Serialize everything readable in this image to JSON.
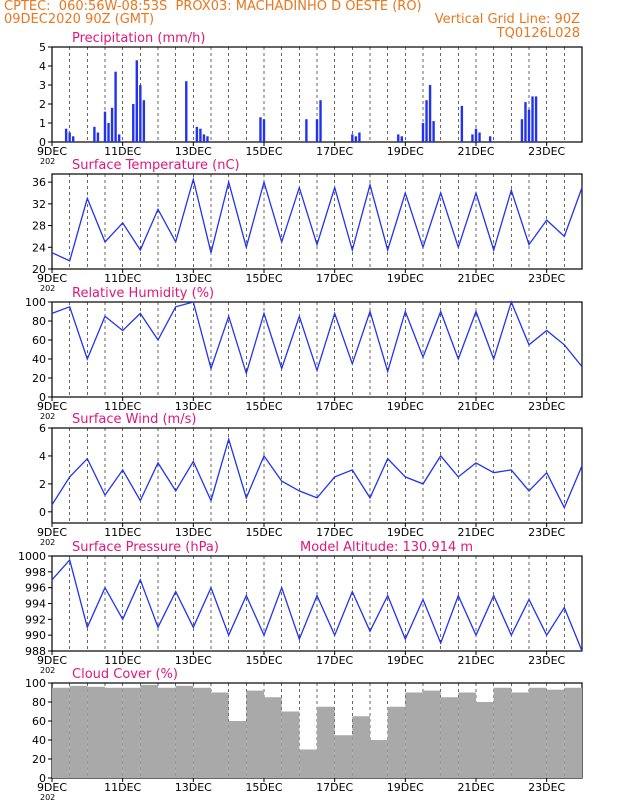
{
  "header": {
    "line1": "CPTEC:  060:56W-08:53S  PROX03: MACHADINHO D OESTE (RO)",
    "line2_left": "09DEC2020 90Z (GMT)",
    "line2_right": "Vertical Grid Line: 90Z",
    "line3_right": "TQ0126L028"
  },
  "colors": {
    "header": "#e8771e",
    "title": "#e0177a",
    "series": "#2233ee",
    "cloud": "#a9a9a9"
  },
  "x_ticks": [
    "9DEC",
    "11DEC",
    "13DEC",
    "15DEC",
    "17DEC",
    "19DEC",
    "21DEC",
    "23DEC"
  ],
  "x_tick_sub": "202",
  "chart_data": [
    {
      "id": "precip",
      "type": "bar",
      "title": "Precipitation (mm/h)",
      "xlim": [
        0,
        15
      ],
      "ylim": [
        0,
        5
      ],
      "yticks": [
        0,
        1,
        2,
        3,
        4,
        5
      ],
      "x": [
        0.4,
        0.5,
        0.6,
        1.2,
        1.3,
        1.5,
        1.6,
        1.7,
        1.8,
        1.9,
        2.3,
        2.4,
        2.5,
        2.6,
        3.8,
        4.1,
        4.2,
        4.3,
        4.4,
        5.9,
        6.0,
        7.2,
        7.5,
        7.6,
        8.5,
        8.6,
        8.7,
        9.8,
        9.9,
        10.5,
        10.6,
        10.7,
        10.8,
        11.6,
        11.9,
        12.0,
        12.1,
        12.4,
        13.3,
        13.4,
        13.5,
        13.6,
        13.7
      ],
      "values": [
        0.7,
        0.5,
        0.3,
        0.8,
        0.5,
        1.6,
        1.0,
        1.8,
        3.7,
        0.4,
        2.0,
        4.3,
        3.0,
        2.2,
        3.2,
        0.8,
        0.7,
        0.4,
        0.3,
        1.3,
        1.2,
        1.2,
        1.2,
        2.2,
        0.4,
        0.3,
        0.5,
        0.4,
        0.3,
        1.0,
        2.2,
        3.0,
        1.1,
        1.9,
        0.4,
        0.7,
        0.5,
        0.3,
        1.2,
        2.1,
        1.7,
        2.4,
        2.4
      ]
    },
    {
      "id": "temp",
      "type": "line",
      "title": "Surface Temperature (nC)",
      "xlim": [
        0,
        15
      ],
      "ylim": [
        20,
        37.5
      ],
      "yticks": [
        20,
        24,
        28,
        32,
        36
      ],
      "x": [
        0,
        0.5,
        1.0,
        1.5,
        2.0,
        2.5,
        3.0,
        3.5,
        4.0,
        4.5,
        5.0,
        5.5,
        6.0,
        6.5,
        7.0,
        7.5,
        8.0,
        8.5,
        9.0,
        9.5,
        10.0,
        10.5,
        11.0,
        11.5,
        12.0,
        12.5,
        13.0,
        13.5,
        14.0,
        14.5,
        15.0
      ],
      "values": [
        23,
        21.5,
        33,
        25,
        28.5,
        23.5,
        31,
        25,
        36.5,
        23,
        36,
        24,
        36,
        25,
        35,
        24.5,
        35,
        23.5,
        35.5,
        23.5,
        34,
        24,
        34,
        24,
        34,
        23.5,
        34.5,
        24.5,
        29,
        26,
        35
      ]
    },
    {
      "id": "rh",
      "type": "line",
      "title": "Relative Humidity (%)",
      "xlim": [
        0,
        15
      ],
      "ylim": [
        0,
        100
      ],
      "yticks": [
        0,
        20,
        40,
        60,
        80,
        100
      ],
      "x": [
        0,
        0.5,
        1.0,
        1.5,
        2.0,
        2.5,
        3.0,
        3.5,
        4.0,
        4.5,
        5.0,
        5.5,
        6.0,
        6.5,
        7.0,
        7.5,
        8.0,
        8.5,
        9.0,
        9.5,
        10.0,
        10.5,
        11.0,
        11.5,
        12.0,
        12.5,
        13.0,
        13.5,
        14.0,
        14.5,
        15.0
      ],
      "values": [
        88,
        95,
        40,
        85,
        70,
        88,
        60,
        95,
        100,
        30,
        85,
        25,
        88,
        30,
        85,
        28,
        88,
        35,
        90,
        27,
        90,
        42,
        90,
        40,
        90,
        40,
        100,
        55,
        70,
        55,
        32
      ]
    },
    {
      "id": "wind",
      "type": "line",
      "title": "Surface Wind (m/s)",
      "xlim": [
        0,
        15
      ],
      "ylim": [
        -0.8,
        6
      ],
      "yticks": [
        0,
        2,
        4,
        6
      ],
      "x": [
        0,
        0.5,
        1.0,
        1.5,
        2.0,
        2.5,
        3.0,
        3.5,
        4.0,
        4.5,
        5.0,
        5.5,
        6.0,
        6.5,
        7.0,
        7.5,
        8.0,
        8.5,
        9.0,
        9.5,
        10.0,
        10.5,
        11.0,
        11.5,
        12.0,
        12.5,
        13.0,
        13.5,
        14.0,
        14.5,
        15.0
      ],
      "values": [
        0.5,
        2.5,
        3.8,
        1.2,
        3.0,
        0.8,
        3.5,
        1.5,
        3.6,
        0.8,
        5.2,
        1.0,
        4.0,
        2.2,
        1.5,
        1.0,
        2.5,
        3.0,
        1.0,
        3.8,
        2.5,
        2.0,
        4.0,
        2.5,
        3.5,
        2.8,
        3.0,
        1.5,
        2.8,
        0.3,
        3.3
      ]
    },
    {
      "id": "pres",
      "type": "line",
      "title": "Surface Pressure (hPa)",
      "annotation": "Model Altitude: 130.914 m",
      "xlim": [
        0,
        15
      ],
      "ylim": [
        988,
        1000
      ],
      "yticks": [
        988,
        990,
        992,
        994,
        996,
        998,
        1000
      ],
      "x": [
        0,
        0.5,
        1.0,
        1.5,
        2.0,
        2.5,
        3.0,
        3.5,
        4.0,
        4.5,
        5.0,
        5.5,
        6.0,
        6.5,
        7.0,
        7.5,
        8.0,
        8.5,
        9.0,
        9.5,
        10.0,
        10.5,
        11.0,
        11.5,
        12.0,
        12.5,
        13.0,
        13.5,
        14.0,
        14.5,
        15.0
      ],
      "values": [
        997,
        999.5,
        991,
        996,
        992,
        997,
        991,
        995.5,
        991,
        996,
        990,
        995,
        990,
        996,
        989.5,
        995,
        990,
        995.5,
        990.5,
        995,
        989.5,
        994.5,
        989,
        995,
        990,
        995,
        990,
        994.5,
        990,
        993.5,
        988
      ]
    },
    {
      "id": "cloud",
      "type": "bar",
      "title": "Cloud Cover (%)",
      "xlim": [
        0,
        15
      ],
      "ylim": [
        0,
        100
      ],
      "yticks": [
        0,
        20,
        40,
        60,
        80,
        100
      ],
      "x": [
        0.25,
        0.75,
        1.25,
        1.75,
        2.25,
        2.75,
        3.25,
        3.75,
        4.25,
        4.75,
        5.25,
        5.75,
        6.25,
        6.75,
        7.25,
        7.75,
        8.25,
        8.75,
        9.25,
        9.75,
        10.25,
        10.75,
        11.25,
        11.75,
        12.25,
        12.75,
        13.25,
        13.75,
        14.25,
        14.75
      ],
      "values": [
        95,
        97,
        96,
        95,
        95,
        98,
        95,
        97,
        95,
        90,
        60,
        92,
        85,
        70,
        30,
        75,
        45,
        65,
        40,
        75,
        90,
        92,
        85,
        90,
        80,
        95,
        90,
        95,
        93,
        95
      ]
    }
  ]
}
